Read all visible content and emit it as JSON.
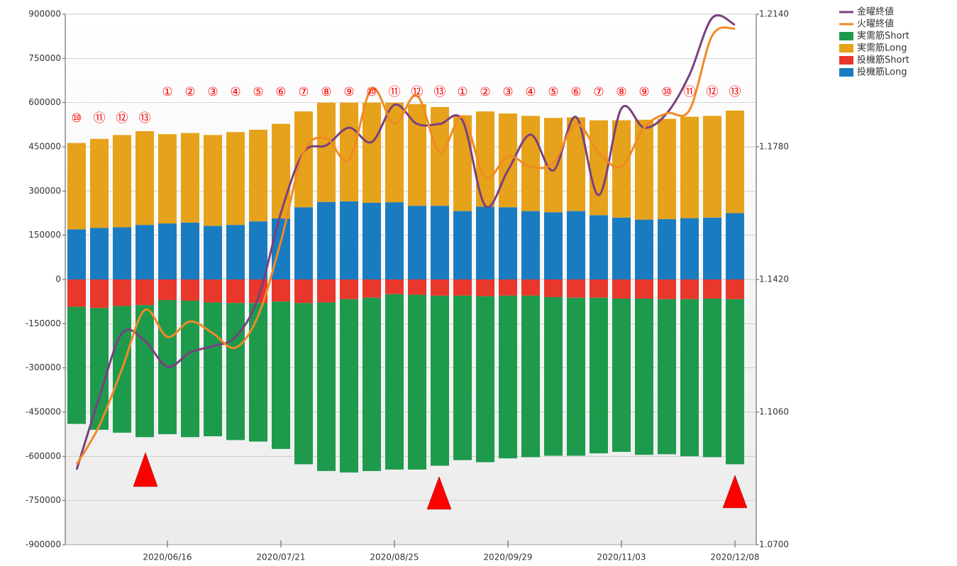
{
  "chart_data": {
    "type": "bar",
    "categories": [
      null,
      null,
      null,
      null,
      "2020/06/16",
      null,
      null,
      null,
      null,
      "2020/07/21",
      null,
      null,
      null,
      null,
      "2020/08/25",
      null,
      null,
      null,
      null,
      "2020/09/29",
      null,
      null,
      null,
      null,
      "2020/11/03",
      null,
      null,
      null,
      null,
      "2020/12/08"
    ],
    "bar_annotations": [
      "⑩",
      "⑪",
      "⑫",
      "⑬",
      "①",
      "②",
      "③",
      "④",
      "⑤",
      "⑥",
      "⑦",
      "⑧",
      "⑨",
      "⑩",
      "⑪",
      "⑫",
      "⑬",
      "①",
      "②",
      "③",
      "④",
      "⑤",
      "⑥",
      "⑦",
      "⑧",
      "⑨",
      "⑩",
      "⑪",
      "⑫",
      "⑬"
    ],
    "series": [
      {
        "name": "金曜終値",
        "type": "line",
        "axis": "y2",
        "color": "#7b3f7f",
        "values": [
          1.0904,
          1.11,
          1.1274,
          1.1254,
          1.1183,
          1.1222,
          1.1239,
          1.1264,
          1.137,
          1.1601,
          1.1765,
          1.1784,
          1.1832,
          1.1793,
          1.1894,
          1.1842,
          1.1842,
          1.1851,
          1.162,
          1.1716,
          1.1813,
          1.1716,
          1.1861,
          1.1649,
          1.1884,
          1.1832,
          1.1871,
          1.1976,
          1.213,
          1.2111
        ]
      },
      {
        "name": "火曜終値",
        "type": "line",
        "axis": "y2",
        "color": "#f08a24",
        "values": [
          1.0918,
          1.1023,
          1.1177,
          1.1337,
          1.1264,
          1.1306,
          1.1274,
          1.1235,
          1.1322,
          1.1524,
          1.1765,
          1.1803,
          1.1745,
          1.1938,
          1.1842,
          1.1919,
          1.1765,
          1.1861,
          1.1697,
          1.1755,
          1.1726,
          1.1736,
          1.1842,
          1.1765,
          1.1726,
          1.1832,
          1.1871,
          1.188,
          1.2082,
          1.2101
        ]
      },
      {
        "name": "実需筋Short",
        "type": "bar",
        "color": "#1e9a4d",
        "values": [
          -397000,
          -413000,
          -430000,
          -448000,
          -455000,
          -463000,
          -454000,
          -465000,
          -470000,
          -500000,
          -547000,
          -572000,
          -588000,
          -588000,
          -595000,
          -593000,
          -577000,
          -558000,
          -563000,
          -552000,
          -548000,
          -538000,
          -536000,
          -528000,
          -520000,
          -530000,
          -526000,
          -533000,
          -538000,
          -560000
        ]
      },
      {
        "name": "実需筋Long",
        "type": "bar",
        "color": "#e6a21a",
        "values": [
          293000,
          302000,
          313000,
          318000,
          303000,
          304000,
          308000,
          315000,
          311000,
          321000,
          325000,
          337000,
          335000,
          340000,
          338000,
          345000,
          335000,
          325000,
          323000,
          318000,
          323000,
          320000,
          318000,
          322000,
          330000,
          339000,
          340000,
          344000,
          345000,
          348000
        ]
      },
      {
        "name": "投機筋Short",
        "type": "bar",
        "color": "#e8372b",
        "values": [
          -93000,
          -97000,
          -90000,
          -87000,
          -70000,
          -72000,
          -78000,
          -80000,
          -80000,
          -75000,
          -80000,
          -78000,
          -67000,
          -62000,
          -50000,
          -52000,
          -55000,
          -55000,
          -57000,
          -55000,
          -55000,
          -60000,
          -62000,
          -62000,
          -65000,
          -65000,
          -67000,
          -67000,
          -65000,
          -67000
        ]
      },
      {
        "name": "投機筋Long",
        "type": "bar",
        "color": "#1a7cc0",
        "values": [
          170000,
          175000,
          177000,
          185000,
          190000,
          193000,
          182000,
          185000,
          197000,
          207000,
          245000,
          263000,
          265000,
          260000,
          262000,
          250000,
          250000,
          232000,
          247000,
          245000,
          232000,
          228000,
          232000,
          218000,
          210000,
          203000,
          205000,
          208000,
          210000,
          225000
        ]
      }
    ],
    "ylim": [
      -900000,
      900000
    ],
    "yticks": [
      -900000,
      -750000,
      -600000,
      -450000,
      -300000,
      -150000,
      0,
      150000,
      300000,
      450000,
      600000,
      750000,
      900000
    ],
    "y2lim": [
      1.07,
      1.214
    ],
    "y2ticks": [
      {
        "value": 1.07,
        "label": "1.0700"
      },
      {
        "value": 1.106,
        "label": "1.1060"
      },
      {
        "value": 1.142,
        "label": "1.1420"
      },
      {
        "value": 1.178,
        "label": "1.1780"
      },
      {
        "value": 1.214,
        "label": "1.2140"
      }
    ],
    "grid": true,
    "legend": "right"
  }
}
